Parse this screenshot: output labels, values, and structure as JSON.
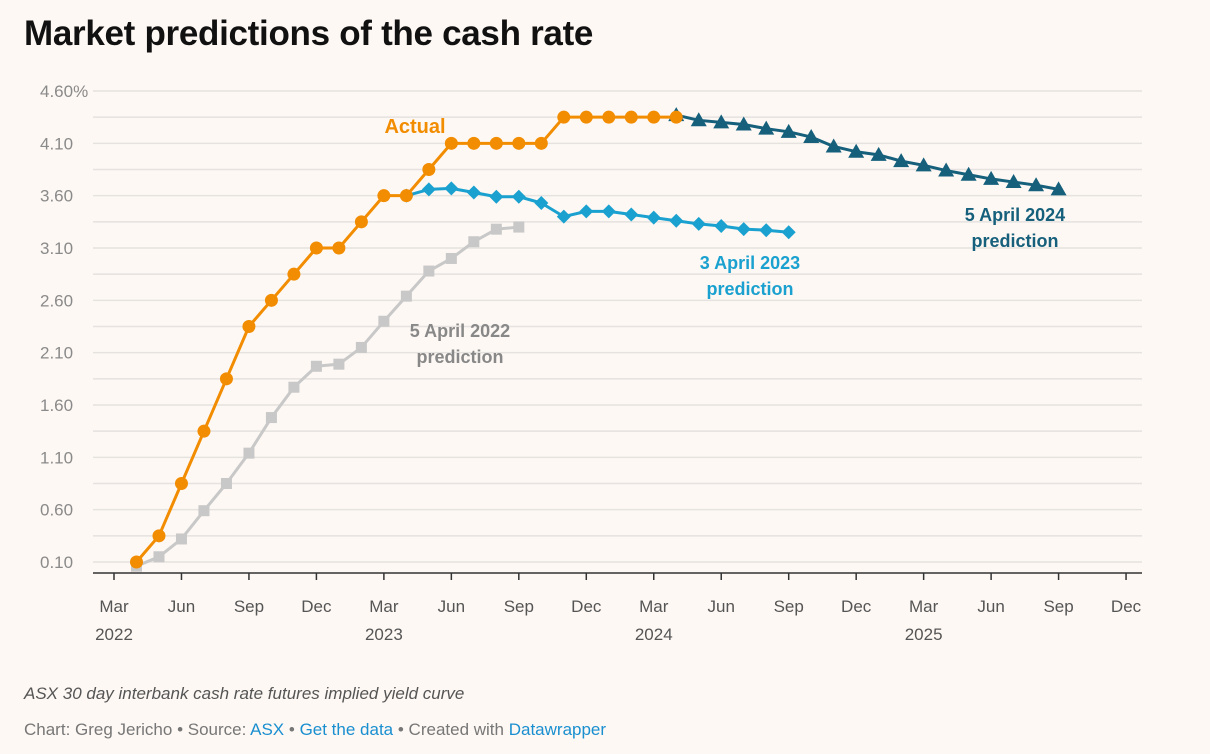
{
  "chart_data": {
    "type": "line",
    "title": "Market predictions of the cash rate",
    "description": "ASX 30 day interbank cash rate futures implied yield curve",
    "xlabel": "",
    "ylabel": "",
    "ylim": [
      0.1,
      4.6
    ],
    "y_ticks": [
      "0.10",
      "0.60",
      "1.10",
      "1.60",
      "2.10",
      "2.60",
      "3.10",
      "3.60",
      "4.10",
      "4.60%"
    ],
    "x_range": [
      "2022-03",
      "2025-12"
    ],
    "x_ticks": [
      {
        "month": "Mar",
        "year": "2022"
      },
      {
        "month": "Jun",
        "year": ""
      },
      {
        "month": "Sep",
        "year": ""
      },
      {
        "month": "Dec",
        "year": ""
      },
      {
        "month": "Mar",
        "year": "2023"
      },
      {
        "month": "Jun",
        "year": ""
      },
      {
        "month": "Sep",
        "year": ""
      },
      {
        "month": "Dec",
        "year": ""
      },
      {
        "month": "Mar",
        "year": "2024"
      },
      {
        "month": "Jun",
        "year": ""
      },
      {
        "month": "Sep",
        "year": ""
      },
      {
        "month": "Dec",
        "year": ""
      },
      {
        "month": "Mar",
        "year": "2025"
      },
      {
        "month": "Jun",
        "year": ""
      },
      {
        "month": "Sep",
        "year": ""
      },
      {
        "month": "Dec",
        "year": ""
      }
    ],
    "grid": true,
    "series": [
      {
        "name": "Actual",
        "color": "#f28c00",
        "marker": "circle",
        "label_lines": [
          "Actual"
        ],
        "x": [
          "2022-04",
          "2022-05",
          "2022-06",
          "2022-07",
          "2022-08",
          "2022-09",
          "2022-10",
          "2022-11",
          "2022-12",
          "2023-01",
          "2023-02",
          "2023-03",
          "2023-04",
          "2023-05",
          "2023-06",
          "2023-07",
          "2023-08",
          "2023-09",
          "2023-10",
          "2023-11",
          "2023-12",
          "2024-01",
          "2024-02",
          "2024-03",
          "2024-04"
        ],
        "values": [
          0.1,
          0.35,
          0.85,
          1.35,
          1.85,
          2.35,
          2.6,
          2.85,
          3.1,
          3.1,
          3.35,
          3.6,
          3.6,
          3.85,
          4.1,
          4.1,
          4.1,
          4.1,
          4.1,
          4.35,
          4.35,
          4.35,
          4.35,
          4.35,
          4.35
        ]
      },
      {
        "name": "5 April 2022 prediction",
        "color": "#c8c8c8",
        "label_color": "#888888",
        "marker": "square",
        "label_lines": [
          "5 April 2022",
          "prediction"
        ],
        "x": [
          "2022-04",
          "2022-05",
          "2022-06",
          "2022-07",
          "2022-08",
          "2022-09",
          "2022-10",
          "2022-11",
          "2022-12",
          "2023-01",
          "2023-02",
          "2023-03",
          "2023-04",
          "2023-05",
          "2023-06",
          "2023-07",
          "2023-08",
          "2023-09"
        ],
        "values": [
          0.06,
          0.15,
          0.32,
          0.59,
          0.85,
          1.14,
          1.48,
          1.77,
          1.97,
          1.99,
          2.15,
          2.4,
          2.64,
          2.88,
          3.0,
          3.16,
          3.28,
          3.3
        ]
      },
      {
        "name": "3 April 2023 prediction",
        "color": "#1ba1cf",
        "marker": "diamond",
        "label_lines": [
          "3 April 2023",
          "prediction"
        ],
        "x": [
          "2023-04",
          "2023-05",
          "2023-06",
          "2023-07",
          "2023-08",
          "2023-09",
          "2023-10",
          "2023-11",
          "2023-12",
          "2024-01",
          "2024-02",
          "2024-03",
          "2024-04",
          "2024-05",
          "2024-06",
          "2024-07",
          "2024-08",
          "2024-09"
        ],
        "values": [
          3.6,
          3.66,
          3.67,
          3.63,
          3.59,
          3.59,
          3.53,
          3.4,
          3.45,
          3.45,
          3.42,
          3.39,
          3.36,
          3.33,
          3.31,
          3.28,
          3.27,
          3.25
        ]
      },
      {
        "name": "5 April 2024 prediction",
        "color": "#16607c",
        "marker": "triangle",
        "label_lines": [
          "5 April 2024",
          "prediction"
        ],
        "x": [
          "2024-04",
          "2024-05",
          "2024-06",
          "2024-07",
          "2024-08",
          "2024-09",
          "2024-10",
          "2024-11",
          "2024-12",
          "2025-01",
          "2025-02",
          "2025-03",
          "2025-04",
          "2025-05",
          "2025-06",
          "2025-07",
          "2025-08",
          "2025-09"
        ],
        "values": [
          4.37,
          4.32,
          4.3,
          4.28,
          4.24,
          4.21,
          4.16,
          4.07,
          4.02,
          3.99,
          3.93,
          3.89,
          3.84,
          3.8,
          3.76,
          3.73,
          3.7,
          3.66
        ]
      }
    ]
  },
  "footer": {
    "chart_by": "Chart: Greg Jericho",
    "sep": " • ",
    "source_label": "Source: ",
    "source_link": "ASX",
    "get_data": "Get the data",
    "created_with": "Created with ",
    "tool_link": "Datawrapper"
  }
}
